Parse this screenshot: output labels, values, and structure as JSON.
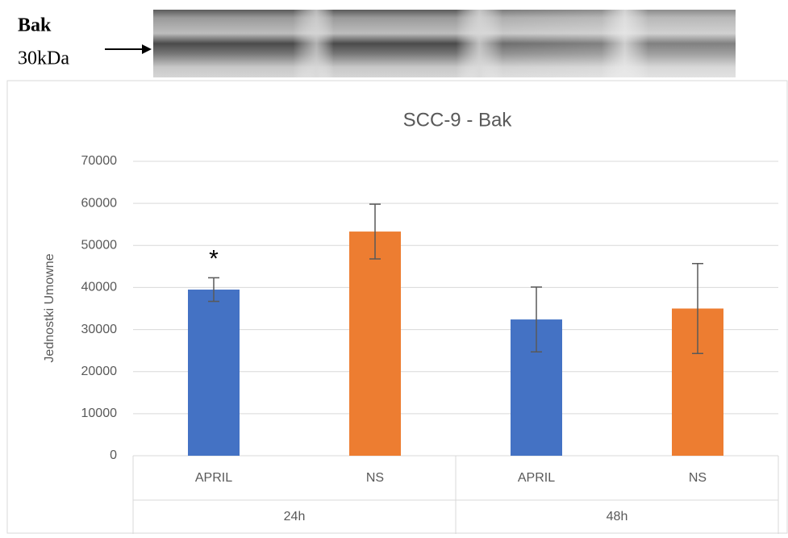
{
  "blot": {
    "protein": "Bak",
    "size": "30kDa"
  },
  "chart_data": {
    "type": "bar",
    "title": "SCC-9 - Bak",
    "y_label": "Jednostki Umowne",
    "categories": [
      "APRIL",
      "NS",
      "APRIL",
      "NS"
    ],
    "groups": [
      "24h",
      "48h"
    ],
    "values": [
      39500,
      53300,
      32400,
      35000
    ],
    "errors": [
      2800,
      6500,
      7700,
      10700
    ],
    "colors": [
      "#4472c4",
      "#ed7d31",
      "#4472c4",
      "#ed7d31"
    ],
    "annotations": [
      "*",
      null,
      null,
      null
    ],
    "ylim": [
      0,
      70000
    ],
    "yticks": [
      0,
      10000,
      20000,
      30000,
      40000,
      50000,
      60000,
      70000
    ],
    "grid": true
  }
}
